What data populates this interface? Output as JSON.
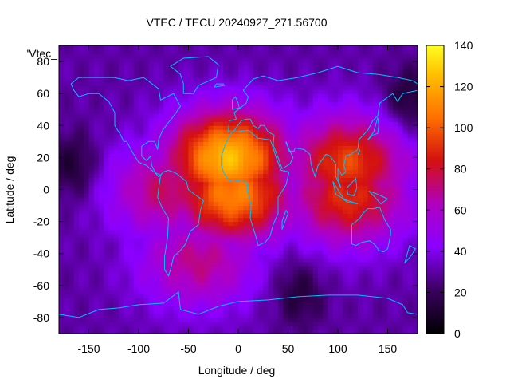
{
  "chart_data": {
    "type": "heatmap",
    "title": "VTEC / TECU 20240927_271.56700",
    "xlabel": "Longitude / deg",
    "ylabel": "Latitude / deg",
    "legend_key": "'Vtec_",
    "xlim": [
      -180,
      180
    ],
    "ylim": [
      -90,
      90
    ],
    "x_ticks": [
      -150,
      -100,
      -50,
      0,
      50,
      100,
      150
    ],
    "y_ticks": [
      -80,
      -60,
      -40,
      -20,
      0,
      20,
      40,
      60,
      80
    ],
    "cbar_range": [
      0,
      140
    ],
    "cbar_ticks": [
      0,
      20,
      40,
      60,
      80,
      100,
      120,
      140
    ],
    "colormap": "gnuplot-pm3d (black-purple-red-orange-yellow)",
    "field_model": {
      "background_tecu": 30,
      "ionization_peaks": [
        {
          "lon": -10,
          "lat": 20,
          "tecu": 125
        },
        {
          "lon": -5,
          "lat": -3,
          "tecu": 110
        },
        {
          "lon": 110,
          "lat": 17,
          "tecu": 95
        },
        {
          "lon": 110,
          "lat": -5,
          "tecu": 90
        },
        {
          "lon": -70,
          "lat": 0,
          "tecu": 75
        },
        {
          "lon": -40,
          "lat": -45,
          "tecu": 70
        }
      ],
      "lows": [
        {
          "lon": -165,
          "lat": 15,
          "tecu": 10
        },
        {
          "lon": 170,
          "lat": 55,
          "tecu": 8
        },
        {
          "lon": 60,
          "lat": -65,
          "tecu": 12
        }
      ]
    },
    "coastline_color": "#00bfff"
  }
}
